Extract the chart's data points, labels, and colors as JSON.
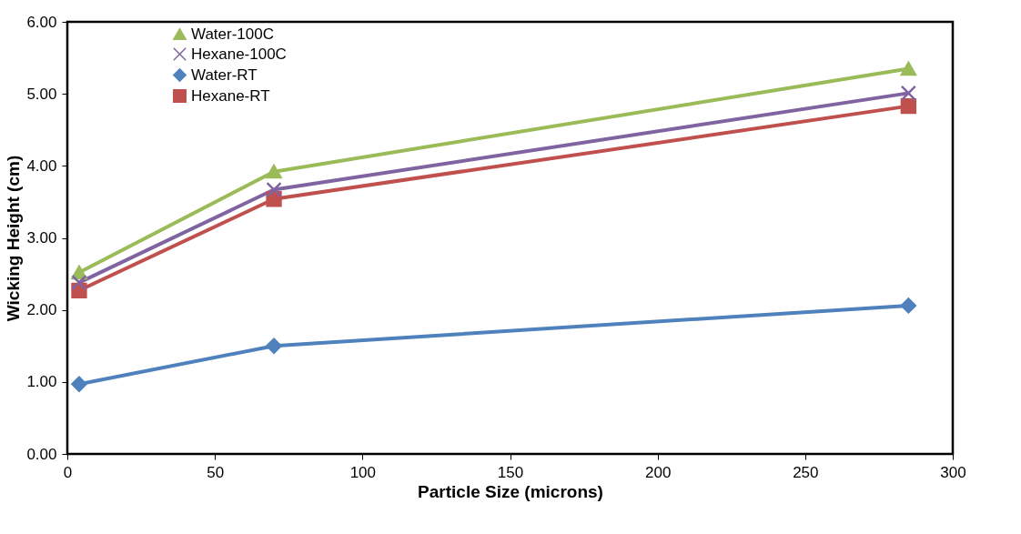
{
  "chart_data": {
    "type": "line",
    "xlabel": "Particle Size (microns)",
    "ylabel": "Wicking Height (cm)",
    "x": [
      4,
      70,
      285
    ],
    "series": [
      {
        "name": "Water-100C",
        "color": "#9bbb59",
        "marker": "triangle",
        "values": [
          2.52,
          3.92,
          5.35
        ]
      },
      {
        "name": "Hexane-100C",
        "color": "#8064a2",
        "marker": "cross",
        "values": [
          2.38,
          3.67,
          5.01
        ]
      },
      {
        "name": "Water-RT",
        "color": "#4f81bd",
        "marker": "diamond",
        "values": [
          0.97,
          1.5,
          2.06
        ]
      },
      {
        "name": "Hexane-RT",
        "color": "#c0504d",
        "marker": "square",
        "values": [
          2.27,
          3.54,
          4.83
        ]
      }
    ],
    "xlim": [
      0,
      300
    ],
    "xticks": [
      0,
      50,
      100,
      150,
      200,
      250,
      300
    ],
    "ylim": [
      0,
      6
    ],
    "yticks": [
      {
        "value": 0,
        "label": "0.00"
      },
      {
        "value": 1,
        "label": "1.00"
      },
      {
        "value": 2,
        "label": "2.00"
      },
      {
        "value": 3,
        "label": "3.00"
      },
      {
        "value": 4,
        "label": "4.00"
      },
      {
        "value": 5,
        "label": "5.00"
      },
      {
        "value": 6,
        "label": "6.00"
      }
    ],
    "grid": false,
    "legend": "top left",
    "line_style": "solid"
  }
}
